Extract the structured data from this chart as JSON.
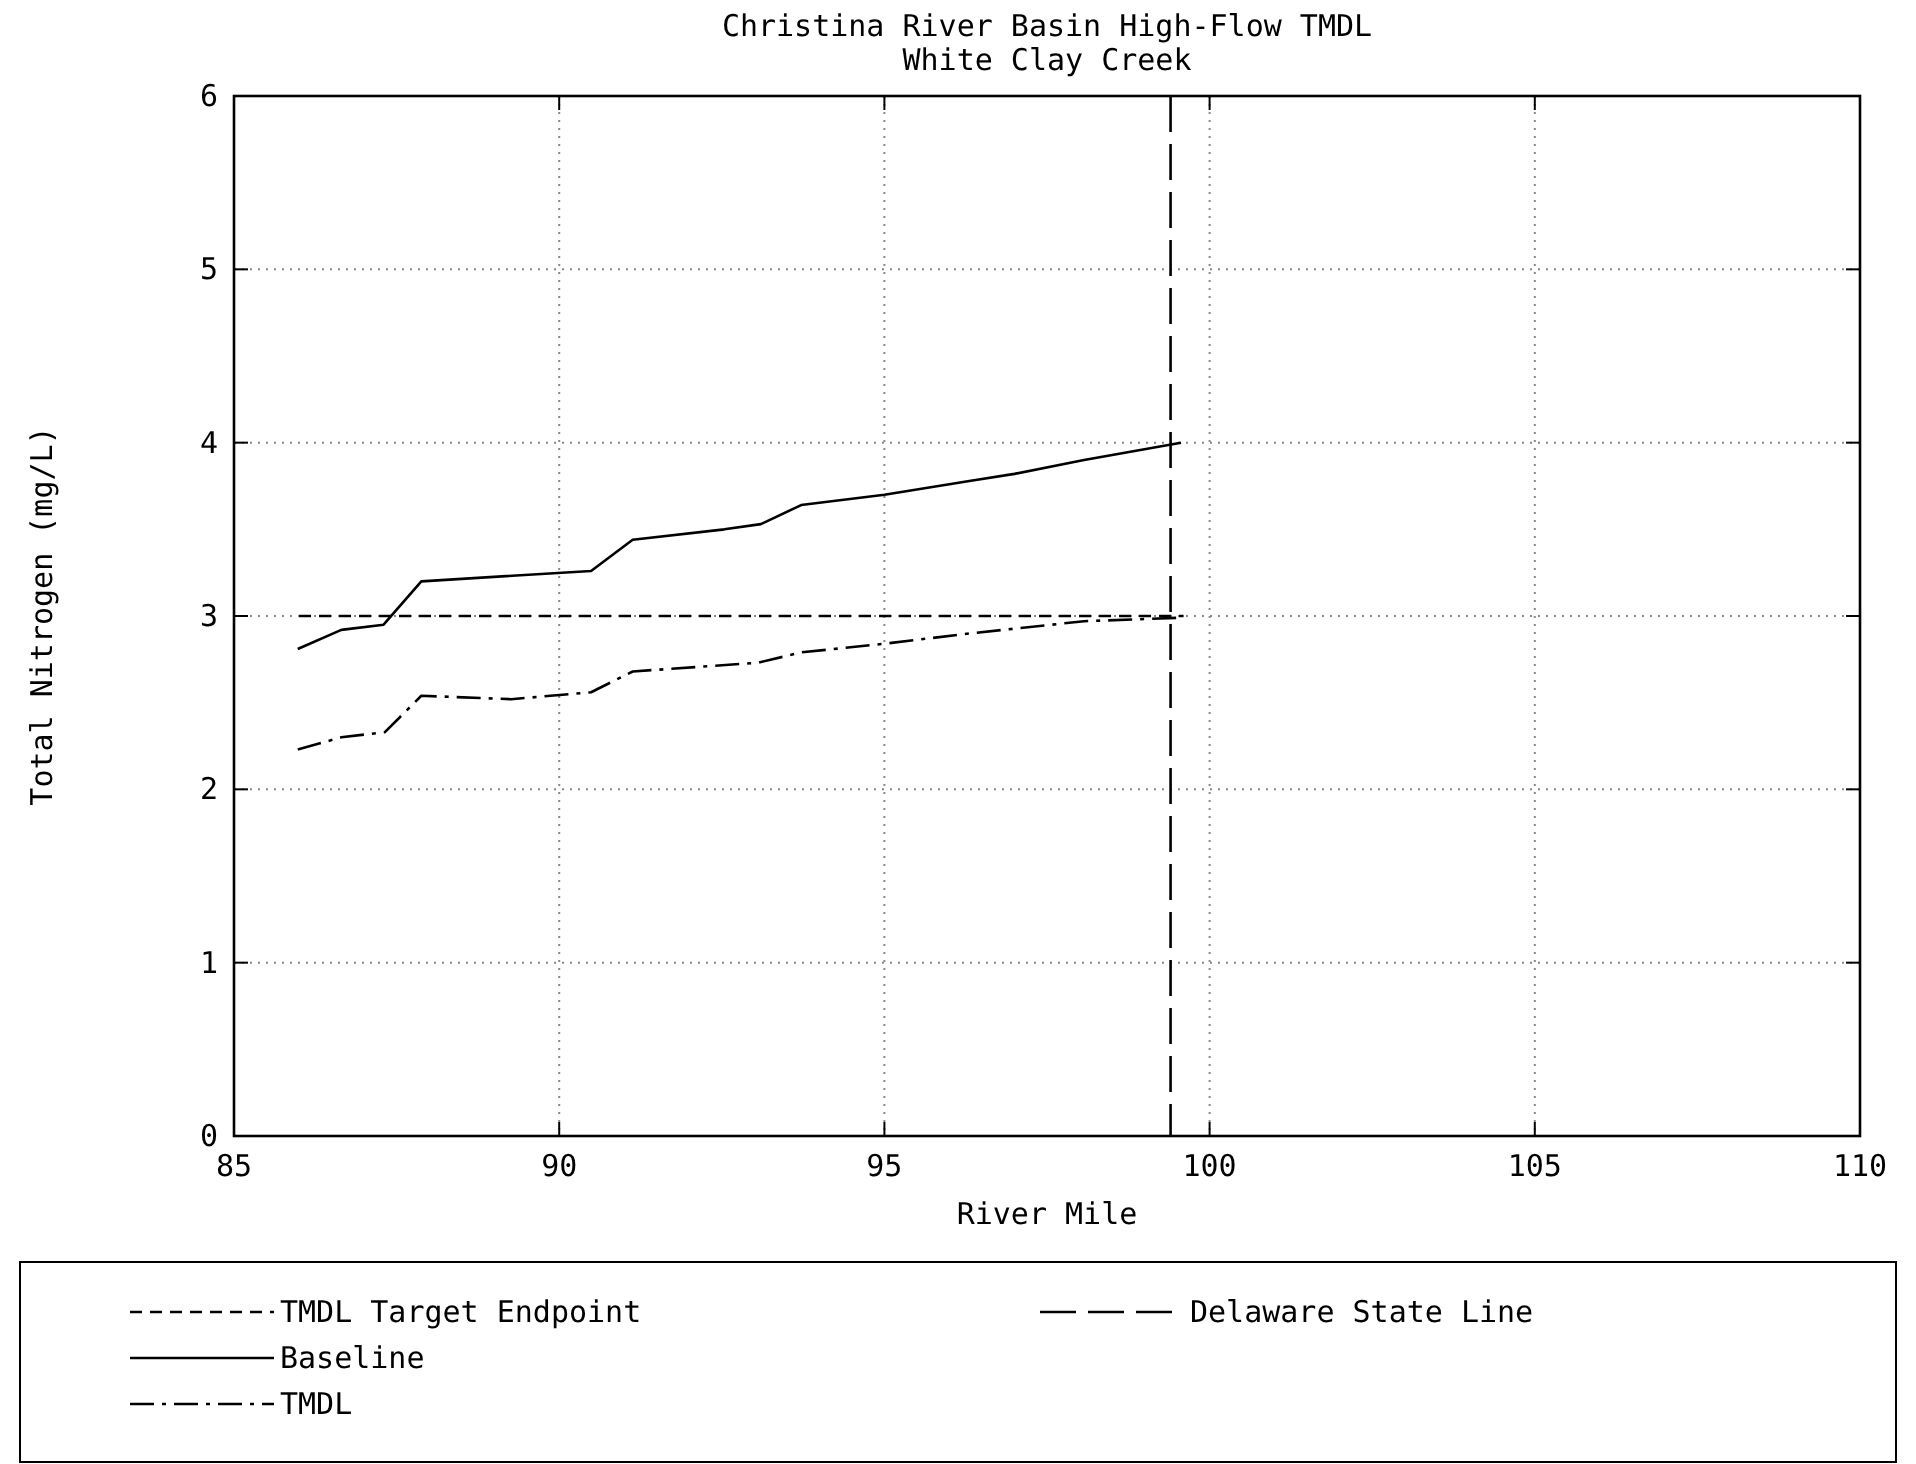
{
  "chart_data": {
    "type": "line",
    "title": "Christina River Basin High-Flow TMDL",
    "subtitle": "White Clay Creek",
    "xlabel": "River Mile",
    "ylabel": "Total Nitrogen (mg/L)",
    "xlim": [
      85,
      110
    ],
    "xticks": [
      85,
      90,
      95,
      100,
      105,
      110
    ],
    "ylim": [
      0,
      6
    ],
    "yticks": [
      0,
      1,
      2,
      3,
      4,
      5,
      6
    ],
    "grid": true,
    "legend": "bottom",
    "marker": "none",
    "series": [
      {
        "name": "TMDL Target Endpoint",
        "color": "#000000",
        "line_style": "dashed",
        "x": [
          86,
          99.6
        ],
        "values": [
          3,
          3
        ]
      },
      {
        "name": "Baseline",
        "color": "#000000",
        "line_style": "solid",
        "x": [
          85.98,
          86.65,
          87.3,
          87.88,
          90.49,
          91.13,
          92.54,
          93.1,
          93.72,
          95,
          96.33,
          97,
          98.07,
          99.56
        ],
        "values": [
          2.81,
          2.92,
          2.95,
          3.2,
          3.26,
          3.44,
          3.5,
          3.53,
          3.64,
          3.7,
          3.78,
          3.82,
          3.9,
          4
        ]
      },
      {
        "name": "TMDL",
        "color": "#000000",
        "line_style": "dashdot",
        "x": [
          85.98,
          86.65,
          87.32,
          87.88,
          89.26,
          90.49,
          91.13,
          93.05,
          93.72,
          95,
          96.33,
          98.07,
          99.56
        ],
        "values": [
          2.23,
          2.3,
          2.33,
          2.54,
          2.52,
          2.56,
          2.68,
          2.73,
          2.79,
          2.84,
          2.9,
          2.97,
          2.99
        ]
      }
    ],
    "ref_lines": [
      {
        "axis": "x",
        "value": 99.4,
        "label": "Delaware State Line",
        "color": "#000000",
        "line_style": "dashed"
      }
    ]
  }
}
